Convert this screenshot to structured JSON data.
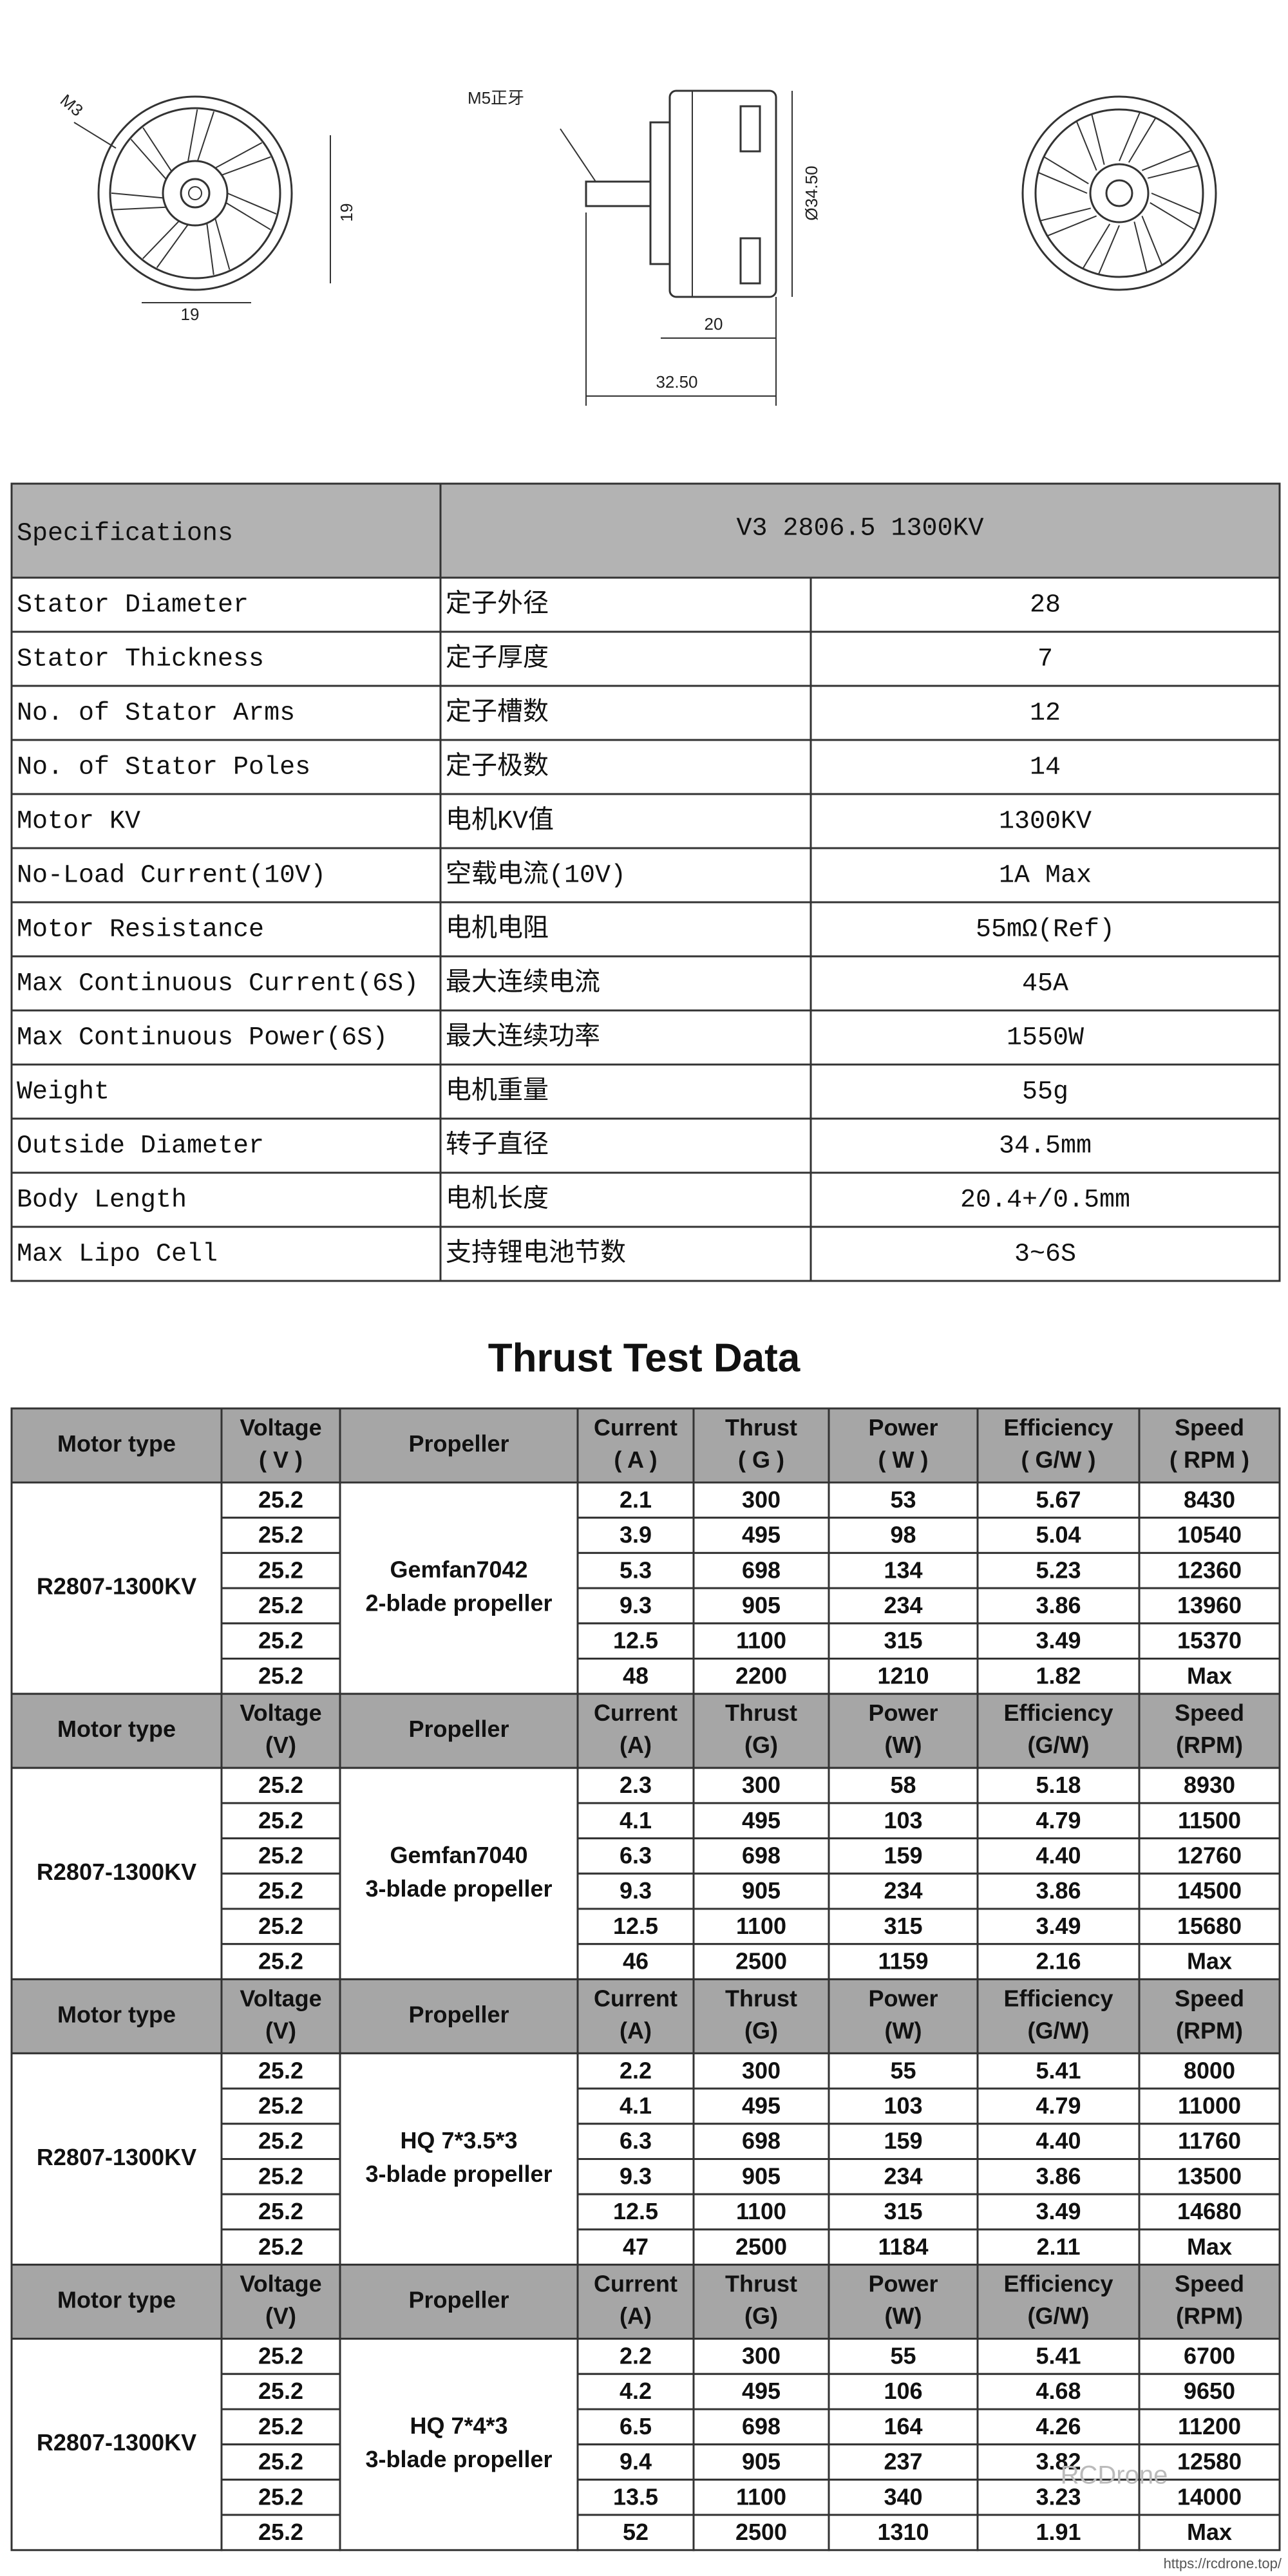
{
  "drawing": {
    "labels": [
      "M3",
      "19",
      "19",
      "M5正牙",
      "Ø34.50",
      "20",
      "32.50"
    ]
  },
  "specs": {
    "header": [
      "Specifications",
      "V3 2806.5 1300KV"
    ],
    "rows": [
      [
        "Stator Diameter",
        "定子外径",
        "28"
      ],
      [
        "Stator Thickness",
        "定子厚度",
        "7"
      ],
      [
        "No. of Stator Arms",
        "定子槽数",
        "12"
      ],
      [
        "No. of Stator Poles",
        "定子极数",
        "14"
      ],
      [
        "Motor KV",
        "电机KV值",
        "1300KV"
      ],
      [
        "No-Load Current(10V)",
        "空载电流(10V)",
        "1A Max"
      ],
      [
        "Motor Resistance",
        "电机电阻",
        "55mΩ(Ref)"
      ],
      [
        "Max Continuous Current(6S)",
        "最大连续电流",
        "45A"
      ],
      [
        "Max Continuous Power(6S)",
        "最大连续功率",
        "1550W"
      ],
      [
        "Weight",
        "电机重量",
        "55g"
      ],
      [
        "Outside Diameter",
        "转子直径",
        "34.5mm"
      ],
      [
        "Body Length",
        "电机长度",
        "20.4+/0.5mm"
      ],
      [
        "Max Lipo Cell",
        "支持锂电池节数",
        "3~6S"
      ]
    ]
  },
  "thrust": {
    "title": "Thrust Test Data",
    "blocks": [
      {
        "header": [
          [
            "Motor type"
          ],
          [
            "Voltage",
            "( V )"
          ],
          [
            "Propeller"
          ],
          [
            "Current",
            "( A )"
          ],
          [
            "Thrust",
            "( G )"
          ],
          [
            "Power",
            "( W )"
          ],
          [
            "Efficiency",
            "( G/W )"
          ],
          [
            "Speed",
            "( RPM )"
          ]
        ],
        "motor_type": "R2807-1300KV",
        "propeller": [
          "Gemfan7042",
          "2-blade propeller"
        ],
        "rows": [
          [
            "25.2",
            "2.1",
            "300",
            "53",
            "5.67",
            "8430"
          ],
          [
            "25.2",
            "3.9",
            "495",
            "98",
            "5.04",
            "10540"
          ],
          [
            "25.2",
            "5.3",
            "698",
            "134",
            "5.23",
            "12360"
          ],
          [
            "25.2",
            "9.3",
            "905",
            "234",
            "3.86",
            "13960"
          ],
          [
            "25.2",
            "12.5",
            "1100",
            "315",
            "3.49",
            "15370"
          ],
          [
            "25.2",
            "48",
            "2200",
            "1210",
            "1.82",
            "Max"
          ]
        ]
      },
      {
        "header": [
          [
            "Motor type"
          ],
          [
            "Voltage",
            "(V)"
          ],
          [
            "Propeller"
          ],
          [
            "Current",
            "(A)"
          ],
          [
            "Thrust",
            "(G)"
          ],
          [
            "Power",
            "(W)"
          ],
          [
            "Efficiency",
            "(G/W)"
          ],
          [
            "Speed",
            "(RPM)"
          ]
        ],
        "motor_type": "R2807-1300KV",
        "propeller": [
          "Gemfan7040",
          "3-blade propeller"
        ],
        "rows": [
          [
            "25.2",
            "2.3",
            "300",
            "58",
            "5.18",
            "8930"
          ],
          [
            "25.2",
            "4.1",
            "495",
            "103",
            "4.79",
            "11500"
          ],
          [
            "25.2",
            "6.3",
            "698",
            "159",
            "4.40",
            "12760"
          ],
          [
            "25.2",
            "9.3",
            "905",
            "234",
            "3.86",
            "14500"
          ],
          [
            "25.2",
            "12.5",
            "1100",
            "315",
            "3.49",
            "15680"
          ],
          [
            "25.2",
            "46",
            "2500",
            "1159",
            "2.16",
            "Max"
          ]
        ]
      },
      {
        "header": [
          [
            "Motor type"
          ],
          [
            "Voltage",
            "(V)"
          ],
          [
            "Propeller"
          ],
          [
            "Current",
            "(A)"
          ],
          [
            "Thrust",
            "(G)"
          ],
          [
            "Power",
            "(W)"
          ],
          [
            "Efficiency",
            "(G/W)"
          ],
          [
            "Speed",
            "(RPM)"
          ]
        ],
        "motor_type": "R2807-1300KV",
        "propeller": [
          "HQ 7*3.5*3",
          "3-blade propeller"
        ],
        "rows": [
          [
            "25.2",
            "2.2",
            "300",
            "55",
            "5.41",
            "8000"
          ],
          [
            "25.2",
            "4.1",
            "495",
            "103",
            "4.79",
            "11000"
          ],
          [
            "25.2",
            "6.3",
            "698",
            "159",
            "4.40",
            "11760"
          ],
          [
            "25.2",
            "9.3",
            "905",
            "234",
            "3.86",
            "13500"
          ],
          [
            "25.2",
            "12.5",
            "1100",
            "315",
            "3.49",
            "14680"
          ],
          [
            "25.2",
            "47",
            "2500",
            "1184",
            "2.11",
            "Max"
          ]
        ]
      },
      {
        "header": [
          [
            "Motor type"
          ],
          [
            "Voltage",
            "(V)"
          ],
          [
            "Propeller"
          ],
          [
            "Current",
            "(A)"
          ],
          [
            "Thrust",
            "(G)"
          ],
          [
            "Power",
            "(W)"
          ],
          [
            "Efficiency",
            "(G/W)"
          ],
          [
            "Speed",
            "(RPM)"
          ]
        ],
        "motor_type": "R2807-1300KV",
        "propeller": [
          "HQ 7*4*3",
          "3-blade propeller"
        ],
        "rows": [
          [
            "25.2",
            "2.2",
            "300",
            "55",
            "5.41",
            "6700"
          ],
          [
            "25.2",
            "4.2",
            "495",
            "106",
            "4.68",
            "9650"
          ],
          [
            "25.2",
            "6.5",
            "698",
            "164",
            "4.26",
            "11200"
          ],
          [
            "25.2",
            "9.4",
            "905",
            "237",
            "3.82",
            "12580"
          ],
          [
            "25.2",
            "13.5",
            "1100",
            "340",
            "3.23",
            "14000"
          ],
          [
            "25.2",
            "52",
            "2500",
            "1310",
            "1.91",
            "Max"
          ]
        ]
      }
    ]
  },
  "watermark": "RCDrone",
  "footer": "https://rcdrone.top/"
}
